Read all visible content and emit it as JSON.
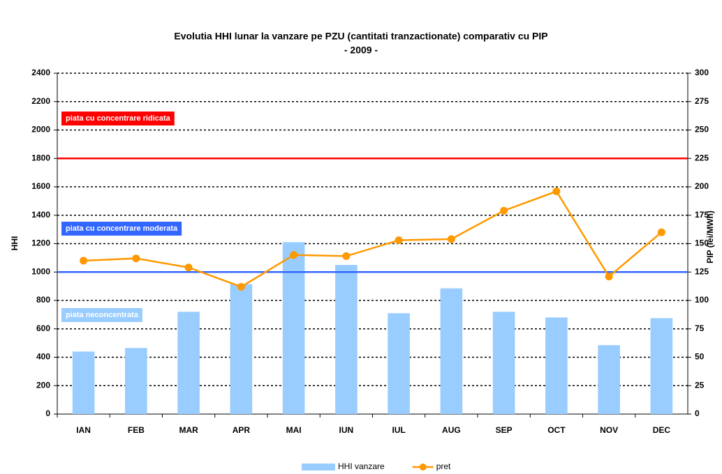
{
  "chart_data": {
    "type": "bar",
    "title": "Evolutia HHI lunar la vanzare pe PZU (cantitati tranzactionate) comparativ cu PIP",
    "subtitle": "- 2009 -",
    "y_label": "HHI",
    "y2_label": "PIP (lei/MWh)",
    "categories": [
      "IAN",
      "FEB",
      "MAR",
      "APR",
      "MAI",
      "IUN",
      "IUL",
      "AUG",
      "SEP",
      "OCT",
      "NOV",
      "DEC"
    ],
    "series": [
      {
        "name": "HHI vanzare",
        "type": "bar",
        "color": "#99ccff",
        "values": [
          440,
          465,
          720,
          915,
          1210,
          1050,
          710,
          885,
          720,
          680,
          485,
          675
        ]
      },
      {
        "name": "pret",
        "type": "line",
        "axis": "y2",
        "color": "#ff9900",
        "values": [
          135,
          137,
          129,
          112,
          140,
          139,
          153,
          154,
          179,
          196,
          121,
          160
        ]
      }
    ],
    "reference_lines": [
      {
        "value": 1800,
        "color": "#ff0000",
        "label": "piata cu concentrare ridicata"
      },
      {
        "value": 1000,
        "color": "#3366ff",
        "label": "piata cu concentrare moderata"
      }
    ],
    "annotations": [
      {
        "text": "piata neconcentrata",
        "color": "#99ccff"
      }
    ],
    "ylim": [
      0,
      2400
    ],
    "yticks": [
      0,
      200,
      400,
      600,
      800,
      1000,
      1200,
      1400,
      1600,
      1800,
      2000,
      2200,
      2400
    ],
    "y2lim": [
      0,
      300
    ],
    "y2ticks": [
      0,
      25,
      50,
      75,
      100,
      125,
      150,
      175,
      200,
      225,
      250,
      275,
      300
    ],
    "grid": true,
    "legend": "bottom"
  }
}
